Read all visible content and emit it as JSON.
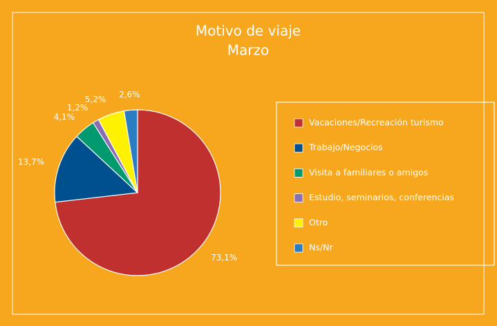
{
  "chart_data": {
    "type": "pie",
    "title": "Motivo de viaje",
    "subtitle": "Marzo",
    "categories": [
      "Vacaciones/Recreación turismo",
      "Trabajo/Negocios",
      "Visita a familiares o amigos",
      "Estudio, seminarios, conferencias",
      "Otro",
      "Ns/Nr"
    ],
    "values": [
      73.1,
      13.7,
      4.1,
      1.2,
      5.2,
      2.6
    ],
    "value_labels": [
      "73,1%",
      "13,7%",
      "4,1%",
      "1,2%",
      "5,2%",
      "2,6%"
    ],
    "colors": [
      "#c0302e",
      "#00508f",
      "#009a6e",
      "#8a6db5",
      "#fff200",
      "#2a7dc0"
    ],
    "legend": "right"
  }
}
